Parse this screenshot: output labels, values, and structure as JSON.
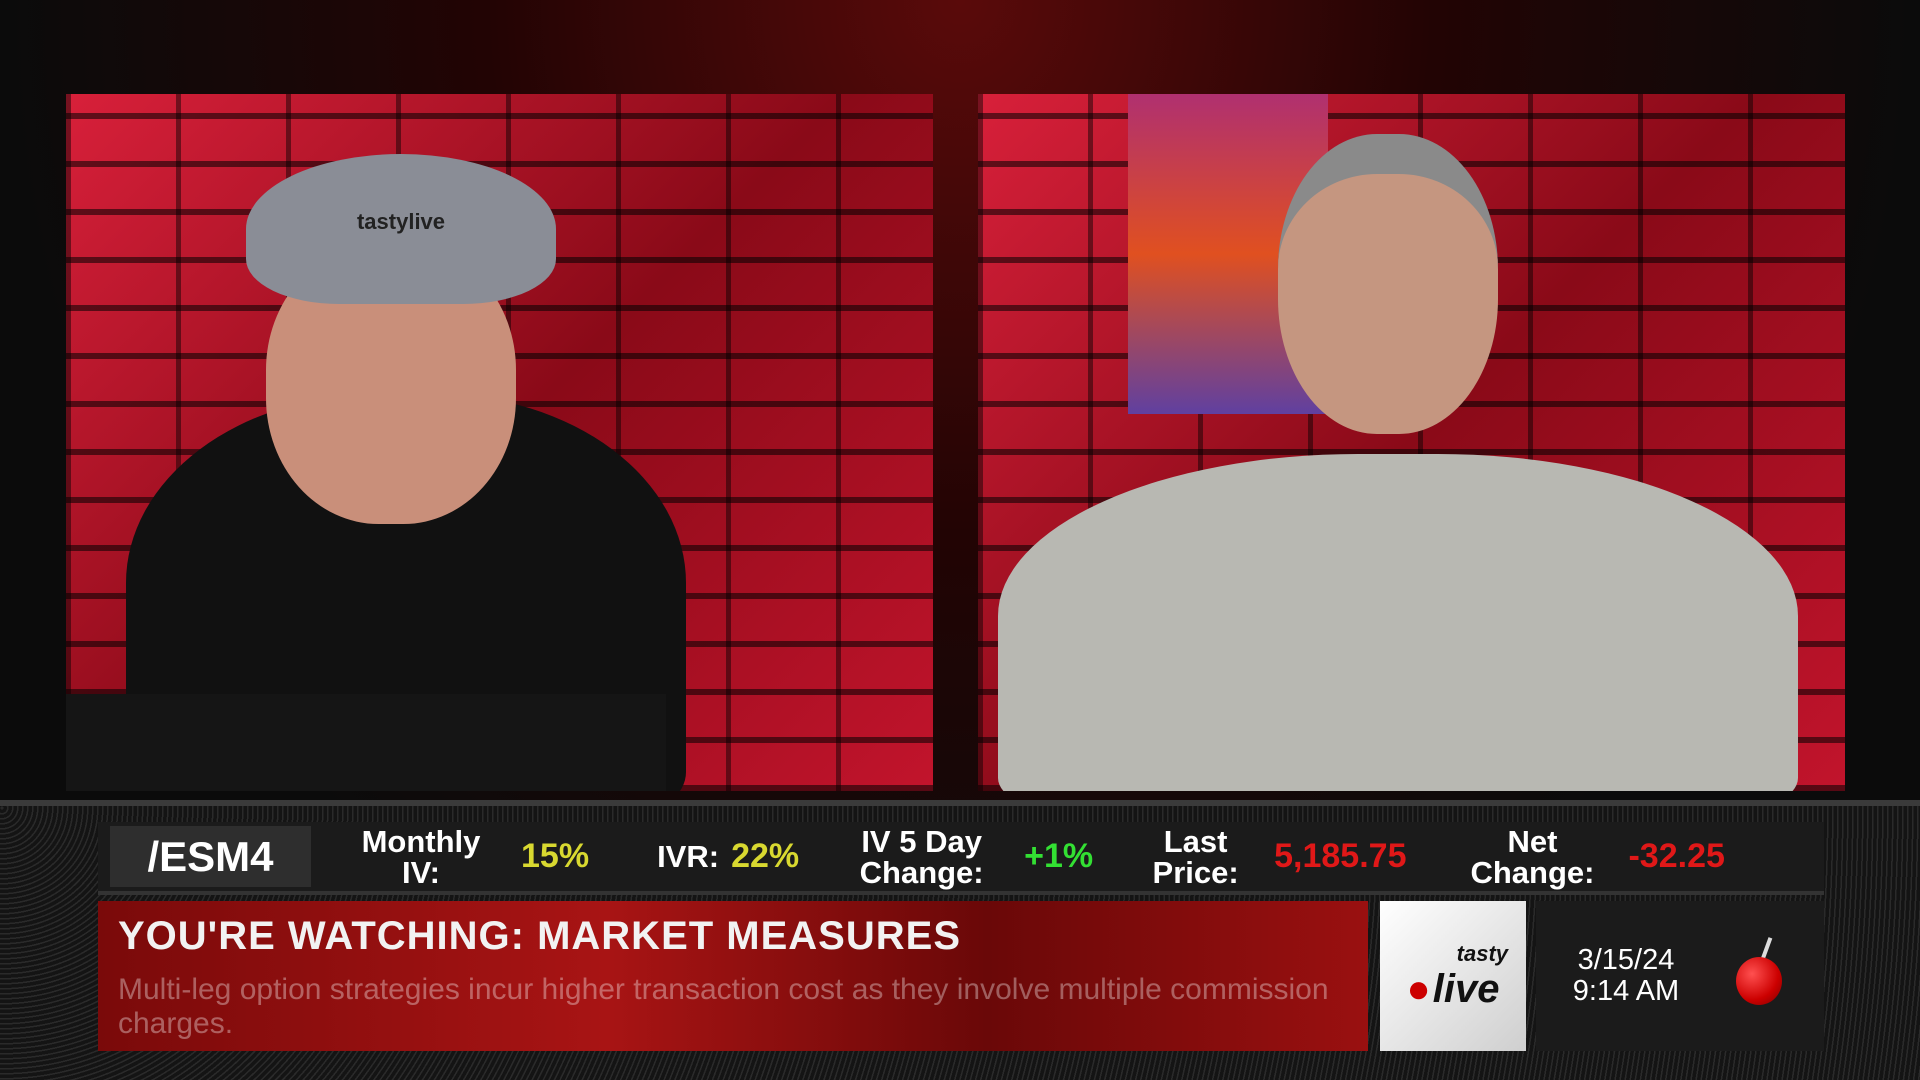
{
  "ticker": {
    "symbol": "/ESM4",
    "monthly_iv_label": "Monthly IV:",
    "monthly_iv": "15%",
    "ivr_label": "IVR:",
    "ivr": "22%",
    "iv5_label": "IV 5 Day Change:",
    "iv5": "+1%",
    "last_label": "Last Price:",
    "last": "5,185.75",
    "net_label": "Net Change:",
    "net": "-32.25",
    "colors": {
      "iv": "#d8d830",
      "positive": "#33e033",
      "negative": "#e01818"
    }
  },
  "banner": {
    "title": "YOU'RE WATCHING: MARKET MEASURES",
    "disclaimer": "Multi-leg option strategies incur higher transaction cost as they involve multiple commission charges."
  },
  "logo": {
    "text_top": "tasty",
    "text_bottom": "live"
  },
  "clock": {
    "date": "3/15/24",
    "time": "9:14 AM"
  },
  "videos": [
    {
      "hat_text": "tastylive"
    },
    {}
  ]
}
